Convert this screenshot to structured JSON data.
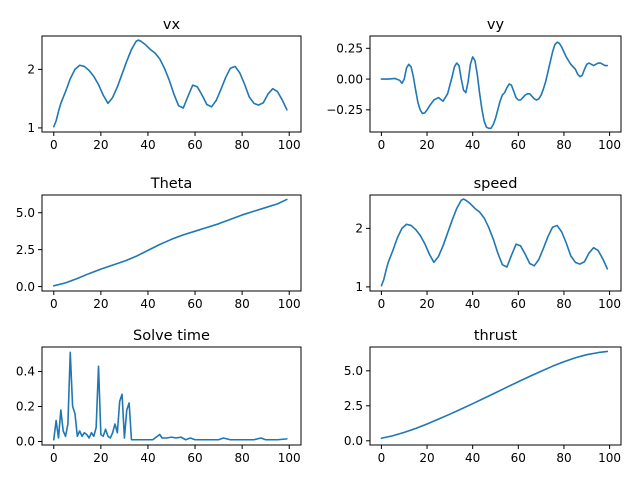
{
  "figure": {
    "color": "#1f77b4"
  },
  "chart_data": [
    {
      "type": "line",
      "title": "vx",
      "xlim": [
        -5,
        105
      ],
      "ylim": [
        0.93,
        2.57
      ],
      "xticks": [
        0,
        20,
        40,
        60,
        80,
        100
      ],
      "xtick_labels": [
        "0",
        "20",
        "40",
        "60",
        "80",
        "100"
      ],
      "yticks": [
        1,
        2
      ],
      "ytick_labels": [
        "1",
        "2"
      ],
      "grid": false,
      "series": [
        {
          "x": [
            0,
            1,
            2,
            3,
            5,
            7,
            9,
            11,
            13,
            15,
            17,
            19,
            21,
            23,
            25,
            27,
            29,
            31,
            33,
            35,
            36,
            37,
            39,
            41,
            43,
            45,
            47,
            49,
            51,
            53,
            55,
            57,
            59,
            61,
            63,
            65,
            67,
            69,
            71,
            73,
            75,
            77,
            79,
            81,
            83,
            85,
            87,
            89,
            91,
            93,
            95,
            97,
            99
          ],
          "y": [
            1.02,
            1.12,
            1.28,
            1.42,
            1.62,
            1.84,
            2.0,
            2.07,
            2.05,
            1.98,
            1.88,
            1.74,
            1.56,
            1.42,
            1.52,
            1.7,
            1.92,
            2.14,
            2.34,
            2.48,
            2.5,
            2.48,
            2.42,
            2.34,
            2.28,
            2.18,
            2.02,
            1.82,
            1.58,
            1.38,
            1.34,
            1.54,
            1.73,
            1.7,
            1.56,
            1.4,
            1.36,
            1.47,
            1.66,
            1.86,
            2.02,
            2.05,
            1.94,
            1.75,
            1.53,
            1.42,
            1.39,
            1.43,
            1.58,
            1.67,
            1.62,
            1.48,
            1.31
          ]
        }
      ]
    },
    {
      "type": "line",
      "title": "vy",
      "xlim": [
        -5,
        105
      ],
      "ylim": [
        -0.43,
        0.35
      ],
      "xticks": [
        0,
        20,
        40,
        60,
        80,
        100
      ],
      "xtick_labels": [
        "0",
        "20",
        "40",
        "60",
        "80",
        "100"
      ],
      "yticks": [
        -0.25,
        0.0,
        0.25
      ],
      "ytick_labels": [
        "−0.25",
        "0.00",
        "0.25"
      ],
      "grid": false,
      "series": [
        {
          "x": [
            0,
            3,
            6,
            8,
            9,
            10,
            11,
            12,
            13,
            14,
            15,
            16,
            17,
            18,
            19,
            20,
            21,
            23,
            25,
            27,
            29,
            31,
            32,
            33,
            34,
            35,
            36,
            37,
            38,
            39,
            40,
            41,
            42,
            43,
            44,
            45,
            46,
            47,
            48,
            49,
            50,
            51,
            52,
            53,
            54,
            55,
            56,
            57,
            58,
            59,
            60,
            61,
            62,
            63,
            64,
            65,
            66,
            67,
            68,
            69,
            70,
            71,
            72,
            73,
            74,
            75,
            76,
            77,
            78,
            79,
            80,
            81,
            82,
            83,
            84,
            85,
            86,
            87,
            88,
            89,
            90,
            91,
            92,
            93,
            94,
            95,
            96,
            97,
            98,
            99
          ],
          "y": [
            0.0,
            0.0,
            0.005,
            -0.01,
            -0.035,
            0.0,
            0.09,
            0.12,
            0.1,
            0.02,
            -0.09,
            -0.19,
            -0.25,
            -0.28,
            -0.275,
            -0.25,
            -0.22,
            -0.17,
            -0.15,
            -0.18,
            -0.12,
            0.02,
            0.1,
            0.13,
            0.11,
            0.0,
            -0.09,
            -0.11,
            -0.02,
            0.12,
            0.18,
            0.15,
            0.04,
            -0.11,
            -0.24,
            -0.34,
            -0.39,
            -0.4,
            -0.4,
            -0.37,
            -0.32,
            -0.25,
            -0.18,
            -0.13,
            -0.11,
            -0.07,
            -0.04,
            -0.05,
            -0.1,
            -0.15,
            -0.17,
            -0.17,
            -0.15,
            -0.13,
            -0.12,
            -0.12,
            -0.14,
            -0.16,
            -0.17,
            -0.16,
            -0.13,
            -0.08,
            -0.02,
            0.06,
            0.14,
            0.22,
            0.28,
            0.3,
            0.29,
            0.26,
            0.22,
            0.18,
            0.15,
            0.12,
            0.1,
            0.08,
            0.04,
            0.02,
            0.03,
            0.08,
            0.12,
            0.13,
            0.12,
            0.11,
            0.12,
            0.13,
            0.13,
            0.12,
            0.11,
            0.11
          ]
        }
      ]
    },
    {
      "type": "line",
      "title": "Theta",
      "xlim": [
        -5,
        105
      ],
      "ylim": [
        -0.3,
        6.2
      ],
      "xticks": [
        0,
        20,
        40,
        60,
        80,
        100
      ],
      "xtick_labels": [
        "0",
        "20",
        "40",
        "60",
        "80",
        "100"
      ],
      "yticks": [
        0.0,
        2.5,
        5.0
      ],
      "ytick_labels": [
        "0.0",
        "2.5",
        "5.0"
      ],
      "grid": false,
      "series": [
        {
          "x": [
            0,
            5,
            10,
            15,
            20,
            25,
            30,
            35,
            40,
            45,
            50,
            55,
            60,
            65,
            70,
            75,
            80,
            85,
            90,
            95,
            99
          ],
          "y": [
            0.05,
            0.25,
            0.55,
            0.88,
            1.18,
            1.45,
            1.72,
            2.05,
            2.45,
            2.85,
            3.2,
            3.5,
            3.75,
            4.0,
            4.25,
            4.55,
            4.85,
            5.1,
            5.35,
            5.6,
            5.9
          ]
        }
      ]
    },
    {
      "type": "line",
      "title": "speed",
      "xlim": [
        -5,
        105
      ],
      "ylim": [
        0.93,
        2.57
      ],
      "xticks": [
        0,
        20,
        40,
        60,
        80,
        100
      ],
      "xtick_labels": [
        "0",
        "20",
        "40",
        "60",
        "80",
        "100"
      ],
      "yticks": [
        1,
        2
      ],
      "ytick_labels": [
        "1",
        "2"
      ],
      "grid": false,
      "series": [
        {
          "x": [
            0,
            1,
            2,
            3,
            5,
            7,
            9,
            11,
            13,
            15,
            17,
            19,
            21,
            23,
            25,
            27,
            29,
            31,
            33,
            35,
            36,
            37,
            39,
            41,
            43,
            45,
            47,
            49,
            51,
            53,
            55,
            57,
            59,
            61,
            63,
            65,
            67,
            69,
            71,
            73,
            75,
            77,
            79,
            81,
            83,
            85,
            87,
            89,
            91,
            93,
            95,
            97,
            99
          ],
          "y": [
            1.02,
            1.12,
            1.28,
            1.42,
            1.62,
            1.84,
            2.0,
            2.07,
            2.05,
            1.98,
            1.88,
            1.74,
            1.56,
            1.42,
            1.52,
            1.7,
            1.92,
            2.14,
            2.34,
            2.48,
            2.5,
            2.48,
            2.42,
            2.34,
            2.28,
            2.18,
            2.02,
            1.82,
            1.58,
            1.38,
            1.34,
            1.54,
            1.73,
            1.7,
            1.56,
            1.4,
            1.36,
            1.47,
            1.66,
            1.86,
            2.02,
            2.05,
            1.94,
            1.75,
            1.53,
            1.42,
            1.39,
            1.43,
            1.58,
            1.67,
            1.62,
            1.48,
            1.31
          ]
        }
      ]
    },
    {
      "type": "line",
      "title": "Solve time",
      "xlim": [
        -5,
        105
      ],
      "ylim": [
        -0.02,
        0.54
      ],
      "xticks": [
        0,
        20,
        40,
        60,
        80,
        100
      ],
      "xtick_labels": [
        "0",
        "20",
        "40",
        "60",
        "80",
        "100"
      ],
      "yticks": [
        0.0,
        0.2,
        0.4
      ],
      "ytick_labels": [
        "0.0",
        "0.2",
        "0.4"
      ],
      "grid": false,
      "series": [
        {
          "x": [
            0,
            1,
            2,
            3,
            4,
            5,
            6,
            7,
            8,
            9,
            10,
            11,
            12,
            13,
            14,
            15,
            16,
            17,
            18,
            19,
            20,
            21,
            22,
            23,
            24,
            25,
            26,
            27,
            28,
            29,
            30,
            31,
            32,
            33,
            34,
            36,
            38,
            40,
            42,
            43,
            44,
            45,
            46,
            48,
            50,
            52,
            54,
            56,
            58,
            60,
            65,
            70,
            72,
            75,
            80,
            85,
            88,
            90,
            95,
            99
          ],
          "y": [
            0.01,
            0.12,
            0.02,
            0.18,
            0.06,
            0.03,
            0.1,
            0.51,
            0.2,
            0.16,
            0.03,
            0.06,
            0.03,
            0.05,
            0.04,
            0.02,
            0.05,
            0.03,
            0.08,
            0.43,
            0.04,
            0.03,
            0.07,
            0.03,
            0.02,
            0.05,
            0.1,
            0.05,
            0.23,
            0.27,
            0.02,
            0.18,
            0.22,
            0.01,
            0.01,
            0.01,
            0.01,
            0.01,
            0.01,
            0.02,
            0.03,
            0.04,
            0.02,
            0.02,
            0.025,
            0.02,
            0.025,
            0.01,
            0.02,
            0.01,
            0.01,
            0.01,
            0.02,
            0.01,
            0.01,
            0.01,
            0.02,
            0.01,
            0.01,
            0.015
          ]
        }
      ]
    },
    {
      "type": "line",
      "title": "thrust",
      "xlim": [
        -5,
        105
      ],
      "ylim": [
        -0.3,
        6.7
      ],
      "xticks": [
        0,
        20,
        40,
        60,
        80,
        100
      ],
      "xtick_labels": [
        "0",
        "20",
        "40",
        "60",
        "80",
        "100"
      ],
      "yticks": [
        0.0,
        2.5,
        5.0
      ],
      "ytick_labels": [
        "0.0",
        "2.5",
        "5.0"
      ],
      "grid": false,
      "series": [
        {
          "x": [
            0,
            5,
            10,
            15,
            20,
            25,
            30,
            35,
            40,
            45,
            50,
            55,
            60,
            65,
            70,
            75,
            80,
            85,
            90,
            95,
            99
          ],
          "y": [
            0.18,
            0.36,
            0.6,
            0.88,
            1.2,
            1.55,
            1.9,
            2.27,
            2.65,
            3.04,
            3.43,
            3.83,
            4.22,
            4.6,
            4.97,
            5.33,
            5.65,
            5.93,
            6.15,
            6.3,
            6.38
          ]
        }
      ]
    }
  ]
}
